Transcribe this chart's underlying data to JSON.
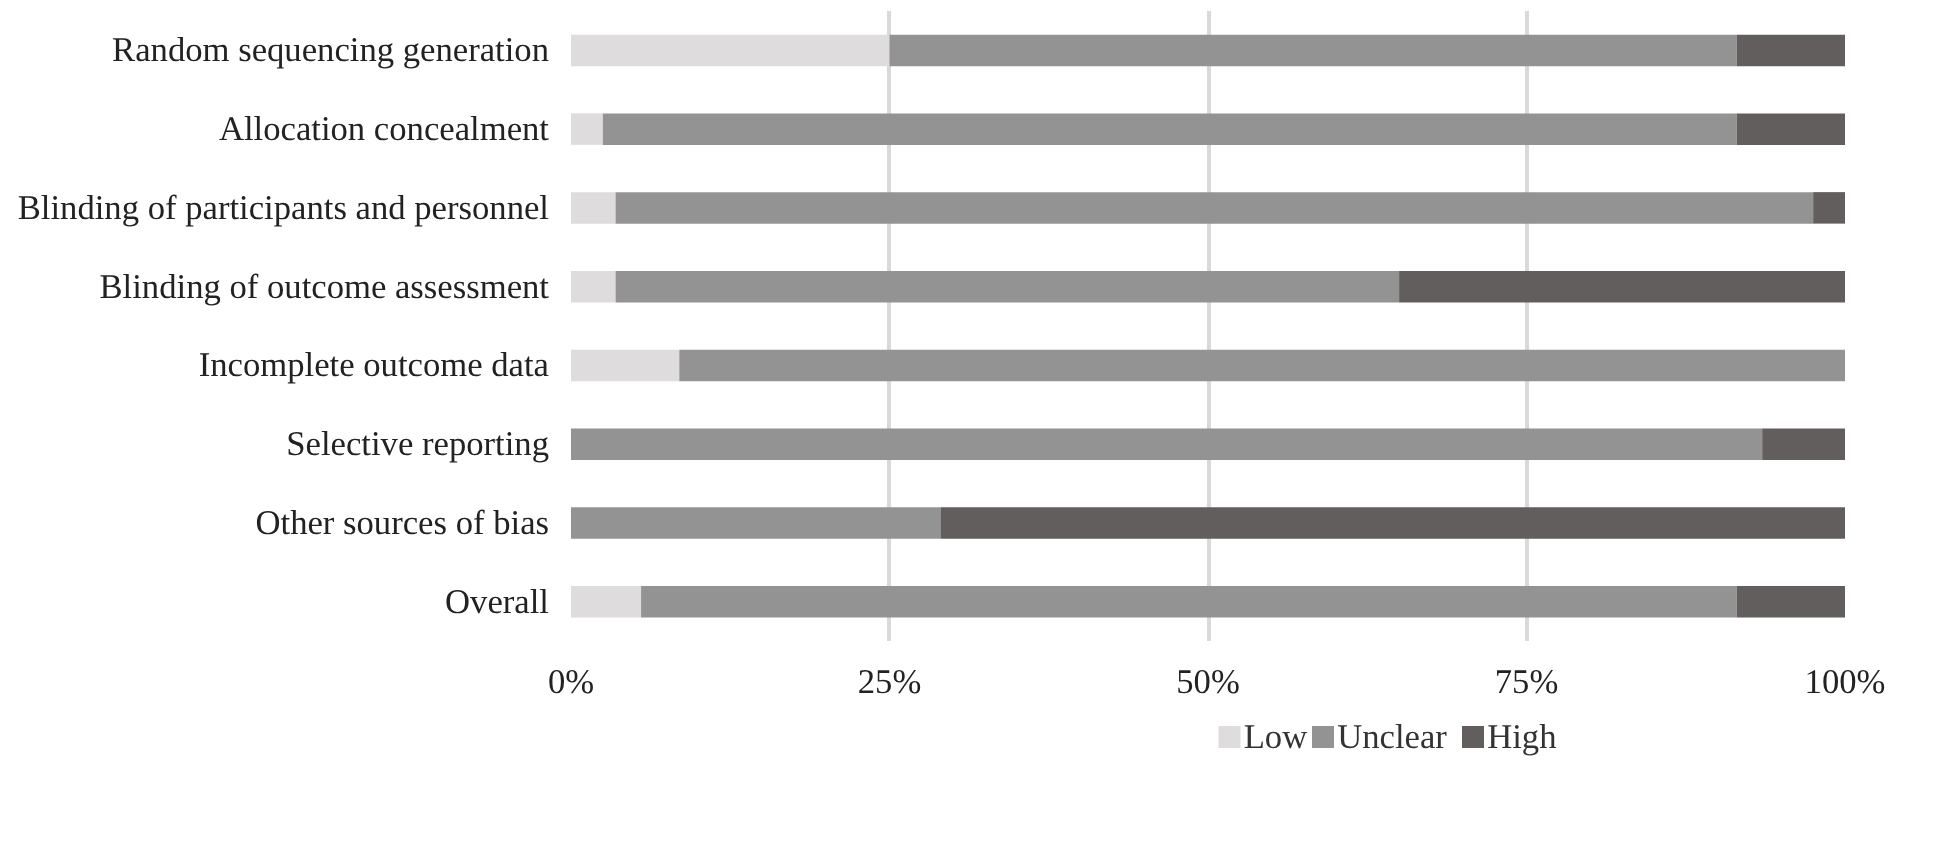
{
  "chart_data": {
    "type": "bar",
    "orientation": "horizontal",
    "stacked": true,
    "categories": [
      "Random sequencing generation",
      "Allocation concealment",
      "Blinding of participants and personnel",
      "Blinding of outcome assessment",
      "Incomplete outcome data",
      "Selective reporting",
      "Other sources of bias",
      "Overall"
    ],
    "series": [
      {
        "name": "Low",
        "color": "#dedcdd",
        "values": [
          25,
          2.5,
          3.5,
          3.5,
          8.5,
          0,
          0,
          5.5
        ]
      },
      {
        "name": "Unclear",
        "color": "#939393",
        "values": [
          66.5,
          89,
          94,
          61.5,
          91.5,
          93.5,
          29,
          86
        ]
      },
      {
        "name": "High",
        "color": "#625e5d",
        "values": [
          8.5,
          8.5,
          2.5,
          35,
          0,
          6.5,
          71,
          8.5
        ]
      }
    ],
    "xlim": [
      0,
      100
    ],
    "xticks": [
      {
        "value": 0,
        "label": "0%"
      },
      {
        "value": 25,
        "label": "25%"
      },
      {
        "value": 50,
        "label": "50%"
      },
      {
        "value": 75,
        "label": "75%"
      },
      {
        "value": 100,
        "label": "100%"
      }
    ],
    "grid": "x",
    "legend": "bottom"
  }
}
